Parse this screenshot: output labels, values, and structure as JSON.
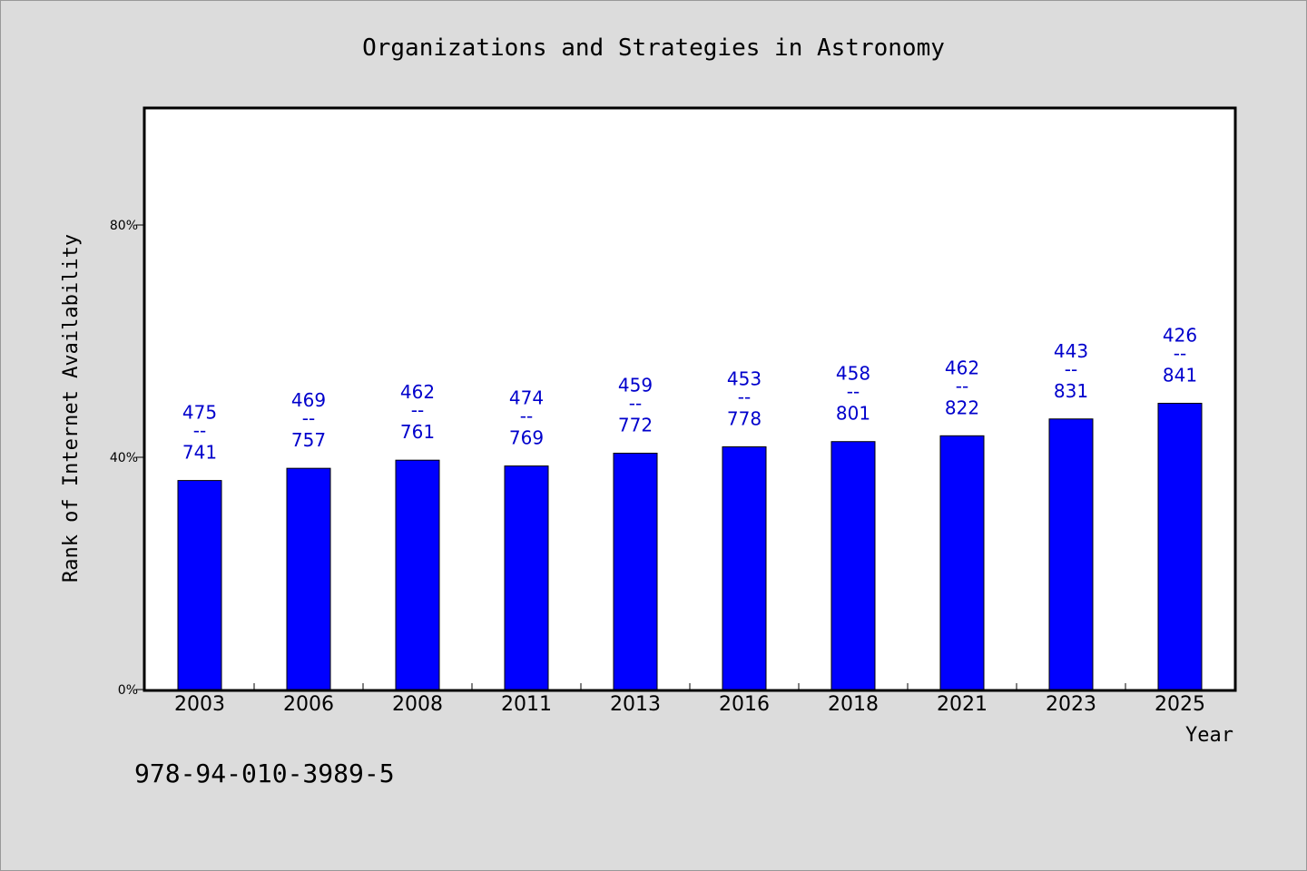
{
  "colors": {
    "background": "#dcdcdc",
    "plot_background": "#ffffff",
    "bar": "#0000ff",
    "label": "#0000cc"
  },
  "footer": {
    "text": "978-94-010-3989-5"
  },
  "chart_data": {
    "type": "bar",
    "title": "Organizations and Strategies in Astronomy",
    "xlabel": "Year",
    "ylabel": "Rank of Internet Availability",
    "categories": [
      "2003",
      "2006",
      "2008",
      "2011",
      "2013",
      "2016",
      "2018",
      "2021",
      "2023",
      "2025"
    ],
    "values": [
      36,
      38.1,
      39.5,
      38.5,
      40.7,
      41.8,
      42.7,
      43.7,
      46.6,
      49.3
    ],
    "labels_top": [
      "475",
      "469",
      "462",
      "474",
      "459",
      "453",
      "458",
      "462",
      "443",
      "426"
    ],
    "labels_bottom": [
      "741",
      "757",
      "761",
      "769",
      "772",
      "778",
      "801",
      "822",
      "831",
      "841"
    ],
    "label_separator": "--",
    "ylim": [
      0,
      100
    ],
    "yticks": [
      0,
      40,
      80
    ],
    "ytick_labels": [
      "0%",
      "40%",
      "80%"
    ],
    "grid": false,
    "legend": "none"
  }
}
